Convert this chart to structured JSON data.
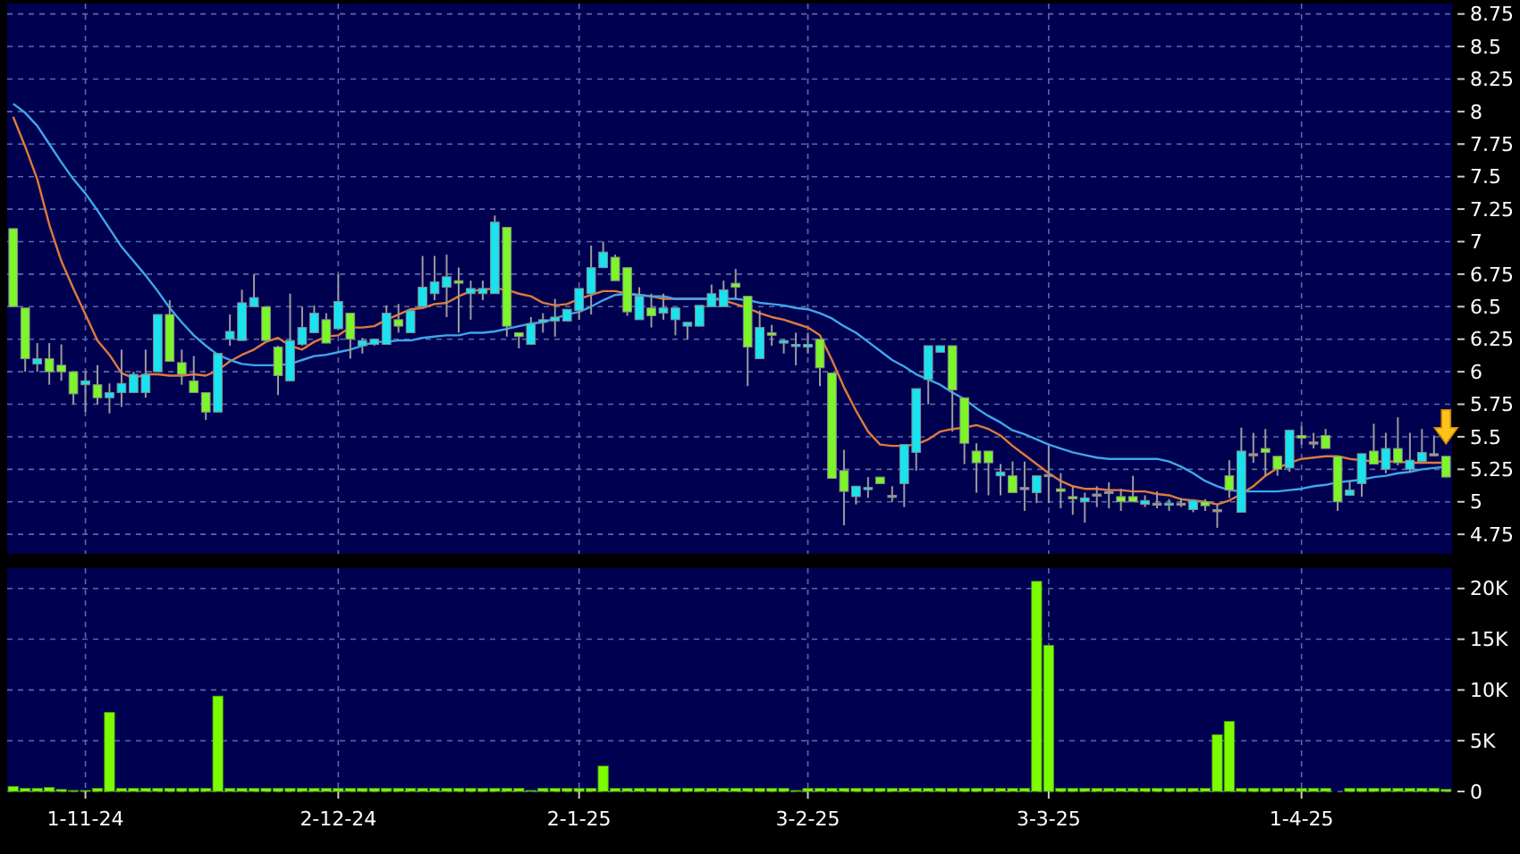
{
  "chart_data": [
    {
      "type": "candlestick",
      "categories": [
        null,
        null,
        null,
        null,
        null,
        null,
        null,
        null,
        null,
        null,
        null,
        null,
        null,
        null,
        null,
        null,
        null,
        null,
        null,
        null,
        null,
        null,
        null,
        null,
        null,
        null,
        null,
        null,
        null,
        null,
        null,
        null,
        null,
        null,
        null,
        null,
        null,
        null,
        null,
        null,
        null,
        null,
        null,
        null,
        null,
        null,
        null,
        null,
        null,
        null,
        null,
        null,
        null,
        null,
        null,
        null,
        null,
        null,
        null,
        null,
        null,
        null,
        null,
        null,
        null,
        null,
        null,
        null,
        null,
        null,
        null,
        null,
        null,
        null,
        null,
        null,
        null,
        null,
        null,
        null,
        null,
        null,
        null,
        null,
        null,
        null,
        null,
        null,
        null,
        null,
        null,
        null,
        null,
        null,
        null,
        null,
        null,
        null,
        null,
        null,
        null,
        null,
        null,
        null,
        null,
        null,
        null,
        null,
        null,
        null,
        null,
        null,
        null,
        null,
        null,
        null,
        null,
        null,
        null,
        null
      ],
      "ohlc": [
        [
          7.1,
          7.1,
          6.5,
          6.5
        ],
        [
          6.49,
          6.49,
          6.0,
          6.1
        ],
        [
          6.06,
          6.22,
          6.0,
          6.1
        ],
        [
          6.1,
          6.22,
          5.9,
          6.0
        ],
        [
          6.05,
          6.21,
          5.93,
          6.0
        ],
        [
          6.0,
          6.0,
          5.75,
          5.83
        ],
        [
          5.9,
          6.0,
          5.69,
          5.93
        ],
        [
          5.9,
          6.05,
          5.75,
          5.8
        ],
        [
          5.8,
          5.91,
          5.68,
          5.84
        ],
        [
          5.84,
          6.17,
          5.73,
          5.91
        ],
        [
          5.84,
          6.0,
          5.84,
          5.98
        ],
        [
          5.84,
          6.17,
          5.8,
          5.98
        ],
        [
          6.0,
          6.44,
          6.0,
          6.44
        ],
        [
          6.44,
          6.55,
          6.08,
          6.08
        ],
        [
          6.07,
          6.17,
          5.9,
          5.98
        ],
        [
          5.93,
          6.12,
          5.84,
          5.84
        ],
        [
          5.84,
          5.84,
          5.63,
          5.69
        ],
        [
          5.69,
          6.14,
          5.69,
          6.14
        ],
        [
          6.25,
          6.44,
          6.2,
          6.31
        ],
        [
          6.24,
          6.63,
          6.24,
          6.53
        ],
        [
          6.5,
          6.75,
          6.5,
          6.57
        ],
        [
          6.5,
          6.5,
          6.24,
          6.24
        ],
        [
          6.19,
          6.2,
          5.82,
          5.97
        ],
        [
          5.93,
          6.6,
          5.93,
          6.24
        ],
        [
          6.21,
          6.5,
          6.2,
          6.34
        ],
        [
          6.3,
          6.51,
          6.3,
          6.45
        ],
        [
          6.4,
          6.45,
          6.22,
          6.22
        ],
        [
          6.33,
          6.75,
          6.33,
          6.54
        ],
        [
          6.45,
          6.45,
          6.1,
          6.25
        ],
        [
          6.2,
          6.26,
          6.14,
          6.24
        ],
        [
          6.21,
          6.25,
          6.2,
          6.25
        ],
        [
          6.21,
          6.51,
          6.21,
          6.45
        ],
        [
          6.4,
          6.52,
          6.3,
          6.35
        ],
        [
          6.3,
          6.47,
          6.3,
          6.47
        ],
        [
          6.5,
          6.89,
          6.5,
          6.65
        ],
        [
          6.6,
          6.89,
          6.55,
          6.69
        ],
        [
          6.65,
          6.9,
          6.42,
          6.73
        ],
        [
          6.7,
          6.8,
          6.3,
          6.68
        ],
        [
          6.6,
          6.7,
          6.4,
          6.64
        ],
        [
          6.6,
          6.7,
          6.55,
          6.64
        ],
        [
          6.6,
          7.2,
          6.6,
          7.15
        ],
        [
          7.11,
          7.11,
          6.27,
          6.35
        ],
        [
          6.3,
          6.3,
          6.18,
          6.27
        ],
        [
          6.21,
          6.42,
          6.21,
          6.37
        ],
        [
          6.38,
          6.45,
          6.3,
          6.4
        ],
        [
          6.39,
          6.56,
          6.27,
          6.42
        ],
        [
          6.39,
          6.48,
          6.39,
          6.48
        ],
        [
          6.47,
          6.64,
          6.4,
          6.64
        ],
        [
          6.6,
          6.97,
          6.44,
          6.8
        ],
        [
          6.8,
          7.0,
          6.8,
          6.92
        ],
        [
          6.88,
          6.9,
          6.7,
          6.7
        ],
        [
          6.8,
          6.8,
          6.43,
          6.46
        ],
        [
          6.4,
          6.65,
          6.4,
          6.58
        ],
        [
          6.49,
          6.6,
          6.34,
          6.43
        ],
        [
          6.45,
          6.6,
          6.4,
          6.49
        ],
        [
          6.4,
          6.49,
          6.28,
          6.49
        ],
        [
          6.35,
          6.38,
          6.25,
          6.38
        ],
        [
          6.35,
          6.51,
          6.35,
          6.51
        ],
        [
          6.5,
          6.67,
          6.5,
          6.6
        ],
        [
          6.5,
          6.7,
          6.5,
          6.63
        ],
        [
          6.68,
          6.79,
          6.56,
          6.65
        ],
        [
          6.58,
          6.58,
          5.89,
          6.19
        ],
        [
          6.1,
          6.47,
          6.1,
          6.34
        ],
        [
          6.3,
          6.36,
          6.2,
          6.28
        ],
        [
          6.22,
          6.25,
          6.14,
          6.24
        ],
        [
          6.2,
          6.3,
          6.05,
          6.21
        ],
        [
          6.19,
          6.3,
          6.14,
          6.21
        ],
        [
          6.25,
          6.25,
          5.89,
          6.03
        ],
        [
          5.99,
          5.99,
          5.18,
          5.18
        ],
        [
          5.24,
          5.4,
          4.82,
          5.08
        ],
        [
          5.04,
          5.12,
          4.98,
          5.12
        ],
        [
          5.1,
          5.19,
          5.03,
          5.11
        ],
        [
          5.19,
          5.19,
          5.14,
          5.14
        ],
        [
          5.05,
          5.12,
          5.0,
          5.05
        ],
        [
          5.14,
          5.44,
          4.96,
          5.44
        ],
        [
          5.38,
          5.87,
          5.24,
          5.87
        ],
        [
          5.94,
          6.2,
          5.75,
          6.2
        ],
        [
          6.15,
          6.2,
          6.15,
          6.2
        ],
        [
          6.2,
          6.2,
          5.54,
          5.86
        ],
        [
          5.8,
          5.8,
          5.29,
          5.45
        ],
        [
          5.39,
          5.45,
          5.07,
          5.3
        ],
        [
          5.39,
          5.39,
          5.05,
          5.3
        ],
        [
          5.2,
          5.29,
          5.05,
          5.23
        ],
        [
          5.2,
          5.31,
          5.07,
          5.07
        ],
        [
          5.11,
          5.31,
          4.93,
          5.11
        ],
        [
          5.07,
          5.2,
          4.99,
          5.2
        ],
        [
          5.21,
          5.43,
          4.99,
          5.21
        ],
        [
          5.1,
          5.22,
          4.95,
          5.08
        ],
        [
          5.04,
          5.12,
          4.9,
          5.03
        ],
        [
          5.0,
          5.07,
          4.84,
          5.03
        ],
        [
          5.06,
          5.12,
          4.96,
          5.06
        ],
        [
          5.08,
          5.15,
          4.95,
          5.08
        ],
        [
          5.04,
          5.1,
          4.93,
          5.0
        ],
        [
          5.04,
          5.2,
          5.0,
          5.0
        ],
        [
          4.98,
          5.05,
          4.96,
          5.01
        ],
        [
          4.99,
          5.08,
          4.95,
          4.99
        ],
        [
          4.98,
          5.02,
          4.93,
          4.99
        ],
        [
          4.99,
          5.03,
          4.96,
          4.99
        ],
        [
          4.94,
          5.02,
          4.92,
          5.01
        ],
        [
          5.0,
          5.02,
          4.93,
          4.97
        ],
        [
          4.94,
          4.98,
          4.8,
          4.94
        ],
        [
          5.2,
          5.32,
          5.03,
          5.09
        ],
        [
          4.92,
          5.57,
          4.92,
          5.39
        ],
        [
          5.37,
          5.53,
          5.3,
          5.37
        ],
        [
          5.41,
          5.56,
          5.2,
          5.38
        ],
        [
          5.35,
          5.35,
          5.2,
          5.25
        ],
        [
          5.26,
          5.55,
          5.23,
          5.55
        ],
        [
          5.51,
          5.58,
          5.44,
          5.49
        ],
        [
          5.46,
          5.53,
          5.41,
          5.46
        ],
        [
          5.51,
          5.56,
          5.41,
          5.41
        ],
        [
          5.35,
          5.35,
          4.93,
          5.0
        ],
        [
          5.05,
          5.16,
          5.05,
          5.09
        ],
        [
          5.14,
          5.37,
          5.04,
          5.37
        ],
        [
          5.39,
          5.6,
          5.29,
          5.29
        ],
        [
          5.25,
          5.53,
          5.22,
          5.41
        ],
        [
          5.41,
          5.65,
          5.28,
          5.3
        ],
        [
          5.25,
          5.53,
          5.23,
          5.32
        ],
        [
          5.31,
          5.56,
          5.3,
          5.38
        ],
        [
          5.37,
          5.51,
          5.35,
          5.37
        ],
        [
          5.35,
          5.35,
          5.19,
          5.19
        ]
      ],
      "colors": [
        "#7df52b",
        "#7df52b",
        "#19e3ef",
        "#7df52b",
        "#7df52b",
        "#7df52b",
        "#19e3ef",
        "#7df52b",
        "#19e3ef",
        "#19e3ef",
        "#19e3ef",
        "#19e3ef",
        "#19e3ef",
        "#7df52b",
        "#7df52b",
        "#7df52b",
        "#7df52b",
        "#19e3ef",
        "#19e3ef",
        "#19e3ef",
        "#19e3ef",
        "#7df52b",
        "#7df52b",
        "#19e3ef",
        "#19e3ef",
        "#19e3ef",
        "#7df52b",
        "#19e3ef",
        "#7df52b",
        "#19e3ef",
        "#19e3ef",
        "#19e3ef",
        "#7df52b",
        "#19e3ef",
        "#19e3ef",
        "#19e3ef",
        "#19e3ef",
        "#7df52b",
        "#19e3ef",
        "#19e3ef",
        "#19e3ef",
        "#7df52b",
        "#7df52b",
        "#19e3ef",
        "#19e3ef",
        "#19e3ef",
        "#19e3ef",
        "#19e3ef",
        "#19e3ef",
        "#19e3ef",
        "#7df52b",
        "#7df52b",
        "#19e3ef",
        "#7df52b",
        "#19e3ef",
        "#19e3ef",
        "#19e3ef",
        "#19e3ef",
        "#19e3ef",
        "#19e3ef",
        "#7df52b",
        "#7df52b",
        "#19e3ef",
        "#7df52b",
        "#19e3ef",
        "#19e3ef",
        "#19e3ef",
        "#7df52b",
        "#7df52b",
        "#7df52b",
        "#19e3ef",
        "#19e3ef",
        "#7df52b",
        "#9a9a9a",
        "#19e3ef",
        "#19e3ef",
        "#19e3ef",
        "#19e3ef",
        "#7df52b",
        "#7df52b",
        "#7df52b",
        "#7df52b",
        "#19e3ef",
        "#7df52b",
        "#9a9a9a",
        "#19e3ef",
        "#9a9a9a",
        "#7df52b",
        "#7df52b",
        "#19e3ef",
        "#9a9a9a",
        "#9a9a9a",
        "#7df52b",
        "#7df52b",
        "#19e3ef",
        "#9a9a9a",
        "#19e3ef",
        "#9a9a9a",
        "#19e3ef",
        "#7df52b",
        "#9a9a9a",
        "#7df52b",
        "#19e3ef",
        "#9a9a9a",
        "#7df52b",
        "#7df52b",
        "#19e3ef",
        "#7df52b",
        "#9a9a9a",
        "#7df52b",
        "#7df52b",
        "#19e3ef",
        "#19e3ef",
        "#7df52b",
        "#19e3ef",
        "#7df52b",
        "#19e3ef",
        "#19e3ef",
        "#9a9a9a",
        "#7df52b"
      ],
      "series": [
        {
          "type": "line",
          "color": "#e07a3a",
          "values": [
            7.96,
            7.73,
            7.48,
            7.13,
            6.85,
            6.64,
            6.44,
            6.24,
            6.13,
            5.99,
            5.95,
            5.98,
            5.98,
            5.97,
            5.97,
            5.98,
            5.97,
            6.01,
            6.08,
            6.13,
            6.17,
            6.23,
            6.26,
            6.2,
            6.17,
            6.23,
            6.27,
            6.28,
            6.34,
            6.34,
            6.35,
            6.4,
            6.44,
            6.48,
            6.49,
            6.52,
            6.53,
            6.58,
            6.62,
            6.63,
            6.64,
            6.63,
            6.6,
            6.58,
            6.53,
            6.51,
            6.52,
            6.56,
            6.59,
            6.62,
            6.62,
            6.6,
            6.59,
            6.58,
            6.56,
            6.56,
            6.56,
            6.56,
            6.56,
            6.55,
            6.52,
            6.49,
            6.45,
            6.42,
            6.4,
            6.37,
            6.34,
            6.28,
            6.09,
            5.88,
            5.7,
            5.54,
            5.44,
            5.43,
            5.43,
            5.44,
            5.48,
            5.54,
            5.56,
            5.57,
            5.59,
            5.56,
            5.51,
            5.43,
            5.36,
            5.29,
            5.22,
            5.16,
            5.12,
            5.1,
            5.1,
            5.09,
            5.09,
            5.08,
            5.08,
            5.06,
            5.05,
            5.02,
            5.01,
            5.0,
            4.98,
            5.01,
            5.06,
            5.12,
            5.2,
            5.26,
            5.3,
            5.33,
            5.34,
            5.35,
            5.35,
            5.33,
            5.32,
            5.31,
            5.31,
            5.31,
            5.3,
            5.3,
            5.3,
            5.3
          ]
        },
        {
          "type": "line",
          "color": "#3fa6ea",
          "values": [
            8.06,
            7.99,
            7.89,
            7.75,
            7.61,
            7.48,
            7.37,
            7.24,
            7.1,
            6.96,
            6.85,
            6.74,
            6.62,
            6.49,
            6.38,
            6.28,
            6.2,
            6.13,
            6.09,
            6.06,
            6.05,
            6.05,
            6.05,
            6.06,
            6.09,
            6.12,
            6.13,
            6.15,
            6.17,
            6.2,
            6.23,
            6.23,
            6.24,
            6.24,
            6.26,
            6.27,
            6.28,
            6.28,
            6.3,
            6.3,
            6.31,
            6.33,
            6.35,
            6.37,
            6.38,
            6.41,
            6.44,
            6.46,
            6.5,
            6.55,
            6.59,
            6.6,
            6.59,
            6.58,
            6.58,
            6.56,
            6.56,
            6.56,
            6.56,
            6.56,
            6.56,
            6.55,
            6.53,
            6.52,
            6.51,
            6.49,
            6.48,
            6.45,
            6.41,
            6.35,
            6.3,
            6.23,
            6.16,
            6.09,
            6.04,
            5.98,
            5.94,
            5.9,
            5.84,
            5.79,
            5.72,
            5.66,
            5.61,
            5.55,
            5.52,
            5.48,
            5.44,
            5.41,
            5.38,
            5.36,
            5.34,
            5.33,
            5.33,
            5.33,
            5.33,
            5.33,
            5.31,
            5.27,
            5.22,
            5.16,
            5.12,
            5.09,
            5.08,
            5.08,
            5.08,
            5.08,
            5.09,
            5.1,
            5.12,
            5.13,
            5.15,
            5.16,
            5.17,
            5.19,
            5.2,
            5.22,
            5.23,
            5.25,
            5.26,
            5.27
          ]
        }
      ],
      "ylim": [
        4.6,
        8.83
      ],
      "yticks": [
        4.75,
        5,
        5.25,
        5.5,
        5.75,
        6,
        6.25,
        6.5,
        6.75,
        7,
        7.25,
        7.5,
        7.75,
        8,
        8.25,
        8.5,
        8.75
      ],
      "grid": true,
      "tick_labels": "y"
    },
    {
      "type": "bar",
      "categories": [
        null,
        null,
        null,
        null,
        null,
        null,
        "1-11-24",
        null,
        null,
        null,
        null,
        null,
        null,
        null,
        null,
        null,
        null,
        null,
        null,
        null,
        null,
        null,
        null,
        null,
        null,
        null,
        null,
        "2-12-24",
        null,
        null,
        null,
        null,
        null,
        null,
        null,
        null,
        null,
        null,
        null,
        null,
        null,
        null,
        null,
        null,
        null,
        null,
        null,
        "2-1-25",
        null,
        null,
        null,
        null,
        null,
        null,
        null,
        null,
        null,
        null,
        null,
        null,
        null,
        null,
        null,
        null,
        null,
        null,
        "3-2-25",
        null,
        null,
        null,
        null,
        null,
        null,
        null,
        null,
        null,
        null,
        null,
        null,
        null,
        null,
        null,
        null,
        null,
        null,
        null,
        "3-3-25",
        null,
        null,
        null,
        null,
        null,
        null,
        null,
        null,
        null,
        null,
        null,
        null,
        null,
        null,
        null,
        null,
        null,
        null,
        null,
        null,
        "1-4-25",
        null,
        null,
        null,
        null,
        null,
        null,
        null,
        null,
        null,
        null,
        null,
        null
      ],
      "values": [
        500,
        300,
        300,
        400,
        200,
        100,
        100,
        300,
        7800,
        300,
        300,
        300,
        300,
        300,
        300,
        300,
        300,
        9400,
        300,
        300,
        300,
        300,
        300,
        300,
        300,
        300,
        300,
        300,
        300,
        300,
        300,
        300,
        300,
        300,
        300,
        300,
        300,
        300,
        300,
        300,
        300,
        300,
        300,
        100,
        300,
        300,
        300,
        300,
        300,
        2500,
        300,
        300,
        300,
        300,
        300,
        300,
        300,
        300,
        300,
        300,
        300,
        300,
        300,
        300,
        300,
        100,
        300,
        300,
        300,
        300,
        300,
        300,
        300,
        300,
        300,
        300,
        300,
        300,
        300,
        300,
        300,
        300,
        300,
        300,
        300,
        20700,
        14400,
        300,
        300,
        300,
        300,
        300,
        300,
        300,
        300,
        300,
        300,
        300,
        300,
        300,
        5600,
        6900,
        300,
        300,
        300,
        300,
        300,
        300,
        300,
        300,
        0,
        300,
        300,
        300,
        300,
        300,
        300,
        300,
        300,
        200
      ],
      "color": "#7cfc00",
      "ylim": [
        0,
        22000
      ],
      "yticks": [
        0,
        {
          "value": 5000,
          "label": "5K"
        },
        {
          "value": 10000,
          "label": "10K"
        },
        {
          "value": 15000,
          "label": "15K"
        },
        {
          "value": 20000,
          "label": "20K"
        }
      ],
      "grid": true
    }
  ]
}
